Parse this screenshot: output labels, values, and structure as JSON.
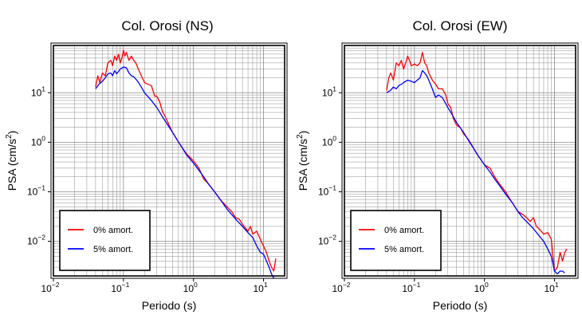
{
  "colors": {
    "red": "#ff0000",
    "blue": "#0000ff",
    "grid": "#8c8c8c",
    "frame": "#000000"
  },
  "chart_data": [
    {
      "type": "line",
      "title": "Col. Orosi (NS)",
      "xlabel": "Periodo (s)",
      "ylabel_base": "PSA (cm/s",
      "ylabel_sup": "2",
      "ylabel_close": ")",
      "x_scale": "log",
      "y_scale": "log",
      "xlim": [
        0.01,
        20
      ],
      "ylim": [
        0.002,
        90
      ],
      "grid": true,
      "legend_placement": "bottom-left",
      "xticks": [
        {
          "value": 0.01,
          "base": "10",
          "exp": "−2"
        },
        {
          "value": 0.1,
          "base": "10",
          "exp": "−1"
        },
        {
          "value": 1,
          "base": "10",
          "exp": "0"
        },
        {
          "value": 10,
          "base": "10",
          "exp": "1"
        }
      ],
      "yticks": [
        {
          "value": 0.01,
          "base": "10",
          "exp": "−2"
        },
        {
          "value": 0.1,
          "base": "10",
          "exp": "−1"
        },
        {
          "value": 1,
          "base": "10",
          "exp": "0"
        },
        {
          "value": 10,
          "base": "10",
          "exp": "1"
        }
      ],
      "series": [
        {
          "name": "0% amort.",
          "color": "#ff0000",
          "points": [
            [
              0.04,
              13
            ],
            [
              0.043,
              22
            ],
            [
              0.046,
              16
            ],
            [
              0.05,
              25
            ],
            [
              0.055,
              22
            ],
            [
              0.06,
              40
            ],
            [
              0.066,
              45
            ],
            [
              0.07,
              35
            ],
            [
              0.075,
              55
            ],
            [
              0.08,
              45
            ],
            [
              0.085,
              60
            ],
            [
              0.09,
              40
            ],
            [
              0.095,
              50
            ],
            [
              0.1,
              72
            ],
            [
              0.105,
              55
            ],
            [
              0.11,
              65
            ],
            [
              0.12,
              45
            ],
            [
              0.13,
              55
            ],
            [
              0.14,
              45
            ],
            [
              0.15,
              40
            ],
            [
              0.16,
              32
            ],
            [
              0.18,
              22
            ],
            [
              0.2,
              16
            ],
            [
              0.22,
              15
            ],
            [
              0.25,
              14
            ],
            [
              0.28,
              8.5
            ],
            [
              0.3,
              8.5
            ],
            [
              0.33,
              6.5
            ],
            [
              0.36,
              4.2
            ],
            [
              0.4,
              3.2
            ],
            [
              0.45,
              2.2
            ],
            [
              0.5,
              1.6
            ],
            [
              0.6,
              1.05
            ],
            [
              0.7,
              0.75
            ],
            [
              0.8,
              0.58
            ],
            [
              1,
              0.42
            ],
            [
              1.2,
              0.3
            ],
            [
              1.4,
              0.18
            ],
            [
              1.6,
              0.15
            ],
            [
              2,
              0.1
            ],
            [
              2.4,
              0.07
            ],
            [
              3,
              0.05
            ],
            [
              3.5,
              0.04
            ],
            [
              4,
              0.03
            ],
            [
              4.5,
              0.028
            ],
            [
              5,
              0.022
            ],
            [
              6,
              0.016
            ],
            [
              6.5,
              0.02
            ],
            [
              7,
              0.014
            ],
            [
              8,
              0.016
            ],
            [
              9,
              0.011
            ],
            [
              10,
              0.008
            ],
            [
              11,
              0.006
            ],
            [
              12,
              0.004
            ],
            [
              13,
              0.003
            ],
            [
              14,
              0.0025
            ],
            [
              15,
              0.0045
            ]
          ]
        },
        {
          "name": "5% amort.",
          "color": "#0000ff",
          "points": [
            [
              0.04,
              12
            ],
            [
              0.045,
              15
            ],
            [
              0.05,
              17
            ],
            [
              0.055,
              20
            ],
            [
              0.06,
              24
            ],
            [
              0.066,
              25
            ],
            [
              0.07,
              22
            ],
            [
              0.075,
              28
            ],
            [
              0.08,
              24
            ],
            [
              0.09,
              30
            ],
            [
              0.1,
              33
            ],
            [
              0.11,
              32
            ],
            [
              0.12,
              25
            ],
            [
              0.13,
              22
            ],
            [
              0.14,
              21
            ],
            [
              0.16,
              17
            ],
            [
              0.18,
              13
            ],
            [
              0.2,
              10
            ],
            [
              0.25,
              7
            ],
            [
              0.3,
              5
            ],
            [
              0.35,
              3.5
            ],
            [
              0.4,
              2.6
            ],
            [
              0.5,
              1.6
            ],
            [
              0.6,
              1.05
            ],
            [
              0.7,
              0.75
            ],
            [
              0.8,
              0.55
            ],
            [
              1,
              0.38
            ],
            [
              1.2,
              0.27
            ],
            [
              1.4,
              0.2
            ],
            [
              1.6,
              0.15
            ],
            [
              2,
              0.1
            ],
            [
              2.5,
              0.065
            ],
            [
              3,
              0.045
            ],
            [
              3.5,
              0.035
            ],
            [
              4,
              0.028
            ],
            [
              5,
              0.02
            ],
            [
              6,
              0.015
            ],
            [
              7,
              0.012
            ],
            [
              8,
              0.008
            ],
            [
              9,
              0.006
            ],
            [
              10,
              0.0055
            ],
            [
              11,
              0.004
            ],
            [
              12,
              0.003
            ],
            [
              13,
              0.0022
            ],
            [
              14,
              0.0018
            ]
          ]
        }
      ]
    },
    {
      "type": "line",
      "title": "Col. Orosi (EW)",
      "xlabel": "Periodo (s)",
      "ylabel_base": "PSA (cm/s",
      "ylabel_sup": "2",
      "ylabel_close": ")",
      "x_scale": "log",
      "y_scale": "log",
      "xlim": [
        0.01,
        20
      ],
      "ylim": [
        0.002,
        90
      ],
      "grid": true,
      "legend_placement": "bottom-left",
      "xticks": [
        {
          "value": 0.01,
          "base": "10",
          "exp": "−2"
        },
        {
          "value": 0.1,
          "base": "10",
          "exp": "−1"
        },
        {
          "value": 1,
          "base": "10",
          "exp": "0"
        },
        {
          "value": 10,
          "base": "10",
          "exp": "1"
        }
      ],
      "yticks": [
        {
          "value": 0.01,
          "base": "10",
          "exp": "−2"
        },
        {
          "value": 0.1,
          "base": "10",
          "exp": "−1"
        },
        {
          "value": 1,
          "base": "10",
          "exp": "0"
        },
        {
          "value": 10,
          "base": "10",
          "exp": "1"
        }
      ],
      "series": [
        {
          "name": "0% amort.",
          "color": "#ff0000",
          "points": [
            [
              0.04,
              11
            ],
            [
              0.043,
              20
            ],
            [
              0.046,
              25
            ],
            [
              0.05,
              18
            ],
            [
              0.055,
              40
            ],
            [
              0.06,
              35
            ],
            [
              0.065,
              45
            ],
            [
              0.07,
              30
            ],
            [
              0.075,
              40
            ],
            [
              0.08,
              55
            ],
            [
              0.085,
              45
            ],
            [
              0.09,
              35
            ],
            [
              0.1,
              38
            ],
            [
              0.11,
              35
            ],
            [
              0.12,
              40
            ],
            [
              0.13,
              65
            ],
            [
              0.14,
              40
            ],
            [
              0.15,
              35
            ],
            [
              0.16,
              25
            ],
            [
              0.18,
              18
            ],
            [
              0.2,
              15
            ],
            [
              0.22,
              12
            ],
            [
              0.25,
              12
            ],
            [
              0.28,
              9
            ],
            [
              0.3,
              6
            ],
            [
              0.33,
              5
            ],
            [
              0.36,
              3
            ],
            [
              0.4,
              2.2
            ],
            [
              0.45,
              2
            ],
            [
              0.5,
              1.5
            ],
            [
              0.6,
              1.1
            ],
            [
              0.7,
              0.75
            ],
            [
              0.8,
              0.55
            ],
            [
              1,
              0.35
            ],
            [
              1.2,
              0.3
            ],
            [
              1.4,
              0.2
            ],
            [
              1.6,
              0.15
            ],
            [
              2,
              0.1
            ],
            [
              2.4,
              0.065
            ],
            [
              3,
              0.04
            ],
            [
              3.5,
              0.035
            ],
            [
              4,
              0.03
            ],
            [
              4.5,
              0.025
            ],
            [
              5,
              0.03
            ],
            [
              5.5,
              0.02
            ],
            [
              6,
              0.018
            ],
            [
              7,
              0.014
            ],
            [
              8,
              0.015
            ],
            [
              9,
              0.011
            ],
            [
              9.5,
              0.005
            ],
            [
              10,
              0.0025
            ],
            [
              11,
              0.003
            ],
            [
              12,
              0.006
            ],
            [
              13,
              0.004
            ],
            [
              14,
              0.006
            ],
            [
              15,
              0.007
            ]
          ]
        },
        {
          "name": "5% amort.",
          "color": "#0000ff",
          "points": [
            [
              0.04,
              10
            ],
            [
              0.045,
              11
            ],
            [
              0.05,
              13
            ],
            [
              0.055,
              12
            ],
            [
              0.06,
              14
            ],
            [
              0.066,
              15
            ],
            [
              0.07,
              16
            ],
            [
              0.075,
              17
            ],
            [
              0.08,
              18
            ],
            [
              0.09,
              17
            ],
            [
              0.1,
              16
            ],
            [
              0.11,
              18
            ],
            [
              0.12,
              20
            ],
            [
              0.13,
              28
            ],
            [
              0.14,
              25
            ],
            [
              0.15,
              22
            ],
            [
              0.16,
              18
            ],
            [
              0.18,
              12
            ],
            [
              0.2,
              8
            ],
            [
              0.22,
              9
            ],
            [
              0.25,
              8
            ],
            [
              0.28,
              6
            ],
            [
              0.3,
              5
            ],
            [
              0.35,
              3.5
            ],
            [
              0.4,
              2.5
            ],
            [
              0.5,
              1.6
            ],
            [
              0.6,
              1.05
            ],
            [
              0.7,
              0.75
            ],
            [
              0.8,
              0.55
            ],
            [
              1,
              0.35
            ],
            [
              1.2,
              0.25
            ],
            [
              1.4,
              0.18
            ],
            [
              1.6,
              0.14
            ],
            [
              2,
              0.09
            ],
            [
              2.5,
              0.06
            ],
            [
              3,
              0.04
            ],
            [
              3.5,
              0.03
            ],
            [
              4,
              0.025
            ],
            [
              5,
              0.018
            ],
            [
              6,
              0.013
            ],
            [
              7,
              0.01
            ],
            [
              8,
              0.007
            ],
            [
              9,
              0.005
            ],
            [
              10,
              0.0025
            ],
            [
              11,
              0.0022
            ],
            [
              12,
              0.0025
            ],
            [
              13,
              0.0025
            ],
            [
              14,
              0.0023
            ]
          ]
        }
      ]
    }
  ]
}
